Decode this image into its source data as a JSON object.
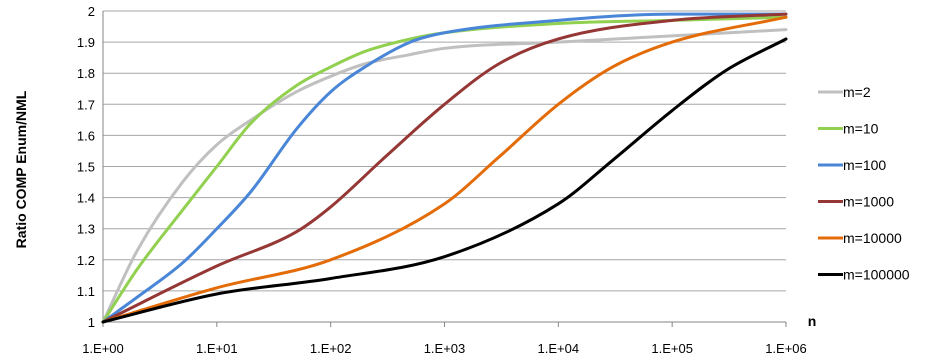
{
  "chart_data": {
    "type": "line",
    "title": "",
    "xlabel": "n",
    "ylabel": "Ratio COMP  Enum/NML",
    "x_scale": "log",
    "x_ticks": [
      "1.E+00",
      "1.E+01",
      "1.E+02",
      "1.E+03",
      "1.E+04",
      "1.E+05",
      "1.E+06"
    ],
    "x_tick_values": [
      1,
      10,
      100,
      1000,
      10000,
      100000,
      1000000
    ],
    "y_ticks": [
      "1",
      "1.1",
      "1.2",
      "1.3",
      "1.4",
      "1.5",
      "1.6",
      "1.7",
      "1.8",
      "1.9",
      "2"
    ],
    "ylim": [
      1,
      2
    ],
    "xlim": [
      1,
      1000000
    ],
    "grid": "horizontal",
    "legend_position": "right",
    "series": [
      {
        "name": "m=2",
        "color": "#c0c0c0",
        "x": [
          1,
          2,
          5,
          10,
          20,
          50,
          100,
          200,
          500,
          1000,
          10000,
          100000,
          1000000
        ],
        "y": [
          1.0,
          1.23,
          1.45,
          1.57,
          1.65,
          1.74,
          1.79,
          1.83,
          1.86,
          1.88,
          1.9,
          1.92,
          1.94
        ]
      },
      {
        "name": "m=10",
        "color": "#92d050",
        "x": [
          1,
          2,
          5,
          10,
          20,
          50,
          100,
          200,
          500,
          1000,
          10000,
          100000,
          1000000
        ],
        "y": [
          1.0,
          1.17,
          1.36,
          1.5,
          1.64,
          1.76,
          1.82,
          1.87,
          1.91,
          1.93,
          1.96,
          1.97,
          1.98
        ]
      },
      {
        "name": "m=100",
        "color": "#4a86d8",
        "x": [
          1,
          2,
          5,
          10,
          20,
          50,
          100,
          200,
          500,
          1000,
          10000,
          100000,
          1000000
        ],
        "y": [
          1.0,
          1.08,
          1.19,
          1.3,
          1.42,
          1.62,
          1.74,
          1.82,
          1.9,
          1.93,
          1.97,
          1.99,
          1.99
        ]
      },
      {
        "name": "m=1000",
        "color": "#953735",
        "x": [
          1,
          10,
          50,
          100,
          300,
          1000,
          3000,
          10000,
          100000,
          1000000
        ],
        "y": [
          1.0,
          1.18,
          1.29,
          1.37,
          1.53,
          1.7,
          1.83,
          1.91,
          1.97,
          1.99
        ]
      },
      {
        "name": "m=10000",
        "color": "#e36c09",
        "x": [
          1,
          10,
          100,
          1000,
          3000,
          10000,
          30000,
          100000,
          1000000
        ],
        "y": [
          1.0,
          1.11,
          1.2,
          1.38,
          1.53,
          1.7,
          1.82,
          1.9,
          1.98
        ]
      },
      {
        "name": "m=100000",
        "color": "#000000",
        "x": [
          1,
          10,
          100,
          1000,
          10000,
          30000,
          100000,
          300000,
          1000000
        ],
        "y": [
          1.0,
          1.09,
          1.14,
          1.21,
          1.38,
          1.52,
          1.68,
          1.81,
          1.91
        ]
      }
    ]
  }
}
